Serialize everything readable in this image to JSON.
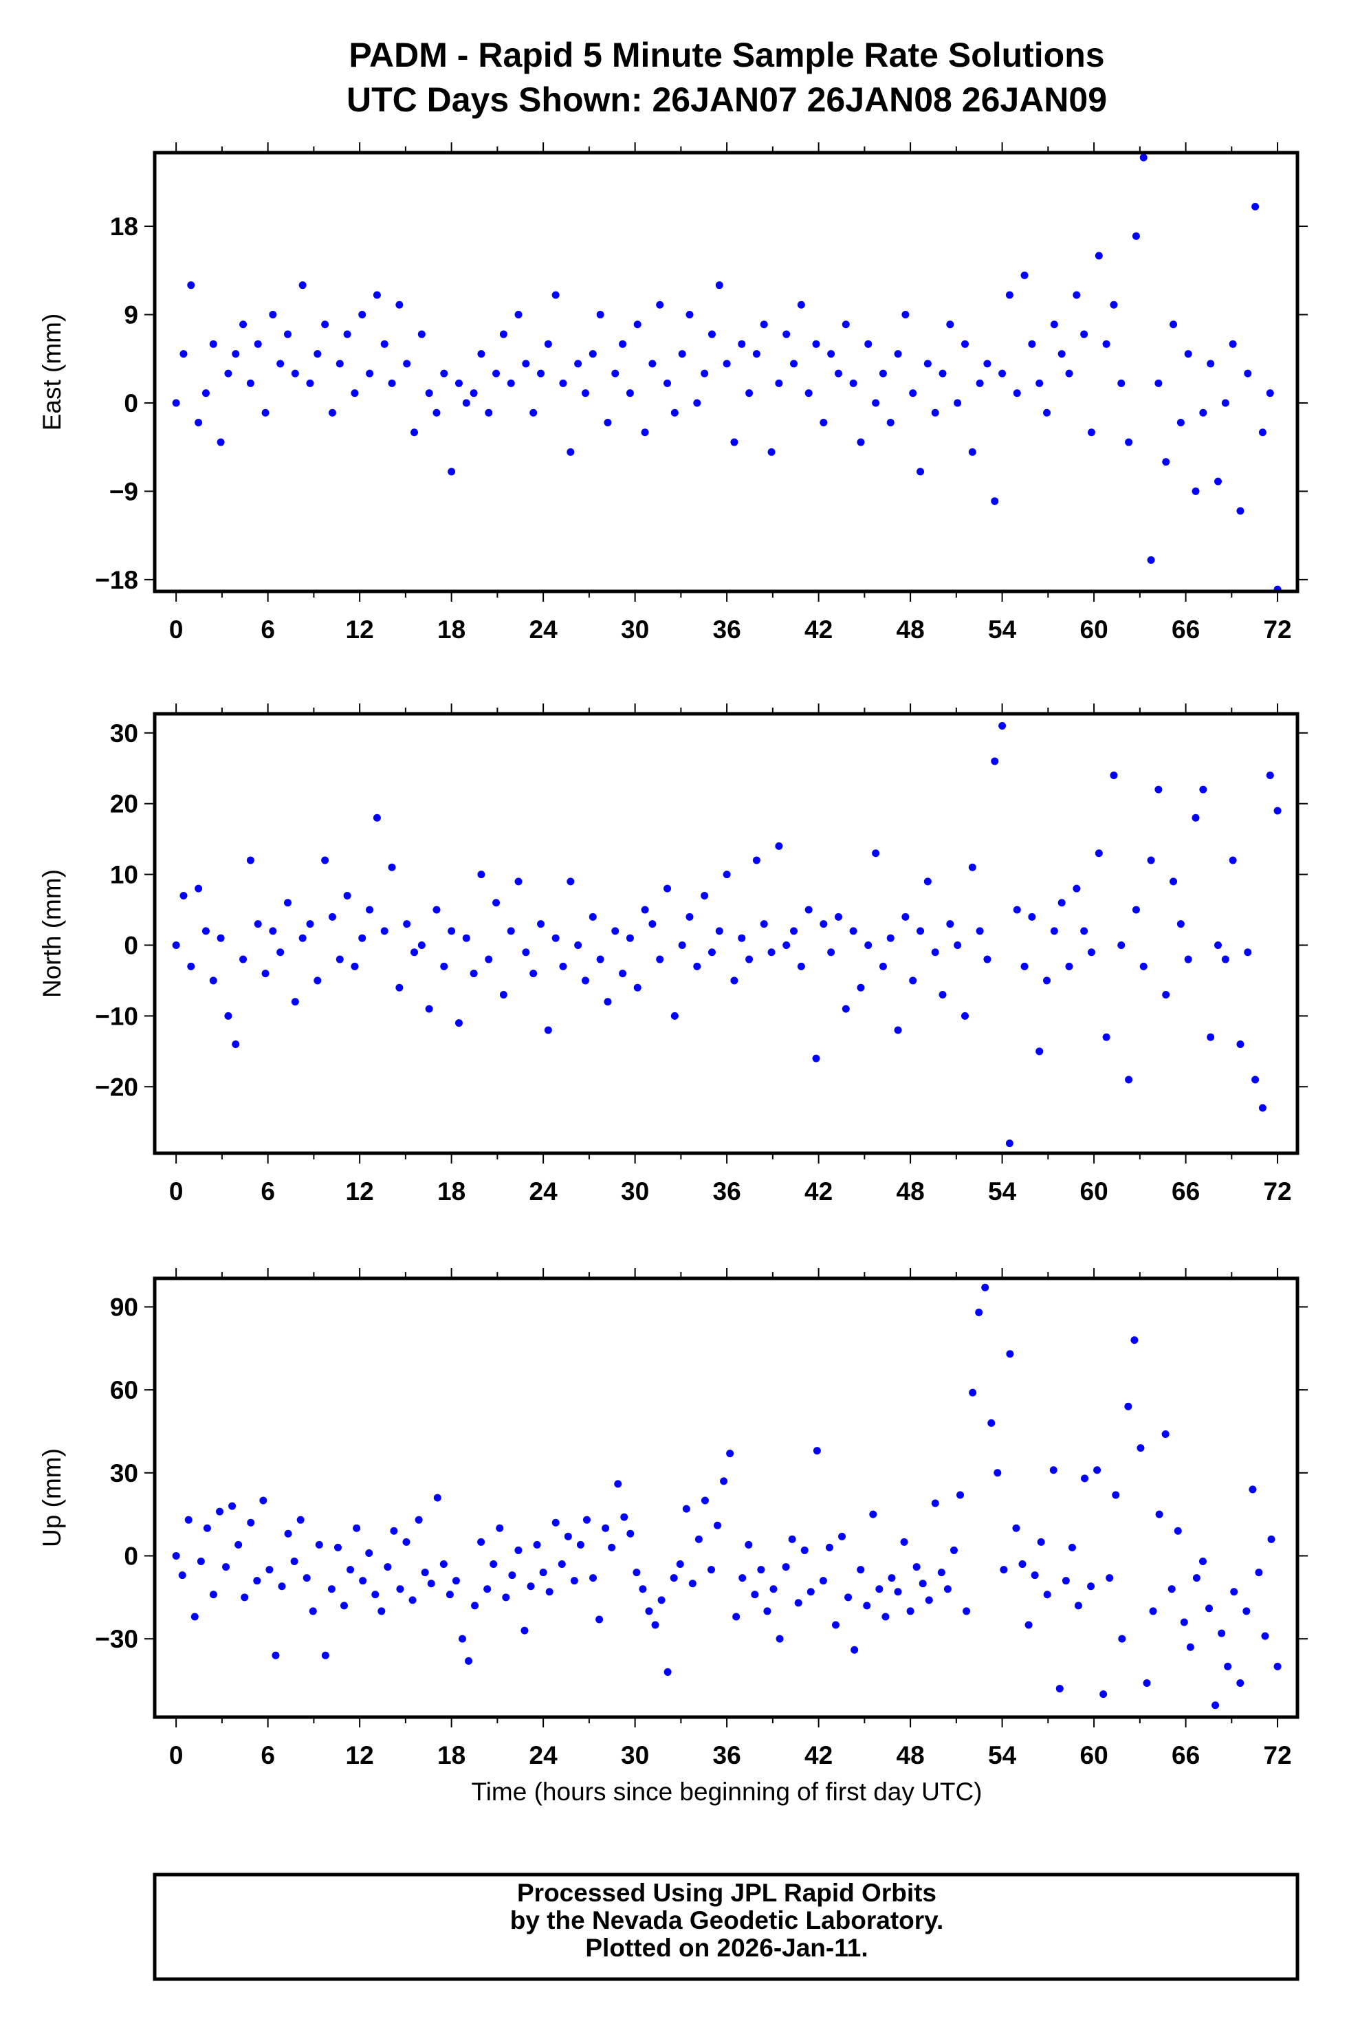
{
  "title_line1": "PADM - Rapid 5 Minute Sample Rate Solutions",
  "title_line2": "UTC Days Shown:  26JAN07 26JAN08 26JAN09",
  "footer": {
    "line1": "Processed Using JPL Rapid Orbits",
    "line2": "by the Nevada Geodetic Laboratory.",
    "line3": "Plotted on 2026-Jan-11."
  },
  "colors": {
    "points": "#0000ff",
    "axes": "#000000"
  },
  "chart_data": [
    {
      "type": "scatter",
      "name": "east",
      "ylabel": "East (mm)",
      "xlabel": "",
      "xlim": [
        -1.4,
        73.3
      ],
      "ylim": [
        -19.2,
        25.5
      ],
      "xticks": [
        "0",
        "6",
        "12",
        "18",
        "24",
        "30",
        "36",
        "42",
        "48",
        "54",
        "60",
        "66",
        "72"
      ],
      "yticks": [
        {
          "v": 18,
          "label": "18"
        },
        {
          "v": 9,
          "label": "9"
        },
        {
          "v": 0,
          "label": "0"
        },
        {
          "v": -9,
          "label": "−9"
        },
        {
          "v": -18,
          "label": "−18"
        }
      ],
      "x_range": [
        0,
        72
      ],
      "values": [
        0,
        5,
        12,
        -2,
        1,
        6,
        -4,
        3,
        5,
        8,
        2,
        6,
        -1,
        9,
        4,
        7,
        3,
        12,
        2,
        5,
        8,
        -1,
        4,
        7,
        1,
        9,
        3,
        11,
        6,
        2,
        10,
        4,
        -3,
        7,
        1,
        -1,
        3,
        -7,
        2,
        0,
        1,
        5,
        -1,
        3,
        7,
        2,
        9,
        4,
        -1,
        3,
        6,
        11,
        2,
        -5,
        4,
        1,
        5,
        9,
        -2,
        3,
        6,
        1,
        8,
        -3,
        4,
        10,
        2,
        -1,
        5,
        9,
        0,
        3,
        7,
        12,
        4,
        -4,
        6,
        1,
        5,
        8,
        -5,
        2,
        7,
        4,
        10,
        1,
        6,
        -2,
        5,
        3,
        8,
        2,
        -4,
        6,
        0,
        3,
        -2,
        5,
        9,
        1,
        -7,
        4,
        -1,
        3,
        8,
        0,
        6,
        -5,
        2,
        4,
        -10,
        3,
        11,
        1,
        13,
        6,
        2,
        -1,
        8,
        5,
        3,
        11,
        7,
        -3,
        15,
        6,
        10,
        2,
        -4,
        17,
        25,
        -16,
        2,
        -6,
        8,
        -2,
        5,
        -9,
        -1,
        4,
        -8,
        0,
        6,
        -11,
        3,
        20,
        -3,
        1,
        -19
      ]
    },
    {
      "type": "scatter",
      "name": "north",
      "ylabel": "North (mm)",
      "xlabel": "",
      "xlim": [
        -1.4,
        73.3
      ],
      "ylim": [
        -29.4,
        32.7
      ],
      "xticks": [
        "0",
        "6",
        "12",
        "18",
        "24",
        "30",
        "36",
        "42",
        "48",
        "54",
        "60",
        "66",
        "72"
      ],
      "yticks": [
        {
          "v": 30,
          "label": "30"
        },
        {
          "v": 20,
          "label": "20"
        },
        {
          "v": 10,
          "label": "10"
        },
        {
          "v": 0,
          "label": "0"
        },
        {
          "v": -10,
          "label": "−10"
        },
        {
          "v": -20,
          "label": "−20"
        }
      ],
      "x_range": [
        0,
        72
      ],
      "values": [
        0,
        7,
        -3,
        8,
        2,
        -5,
        1,
        -10,
        -14,
        -2,
        12,
        3,
        -4,
        2,
        -1,
        6,
        -8,
        1,
        3,
        -5,
        12,
        4,
        -2,
        7,
        -3,
        1,
        5,
        18,
        2,
        11,
        -6,
        3,
        -1,
        0,
        -9,
        5,
        -3,
        2,
        -11,
        1,
        -4,
        10,
        -2,
        6,
        -7,
        2,
        9,
        -1,
        -4,
        3,
        -12,
        1,
        -3,
        9,
        0,
        -5,
        4,
        -2,
        -8,
        2,
        -4,
        1,
        -6,
        5,
        3,
        -2,
        8,
        -10,
        0,
        4,
        -3,
        7,
        -1,
        2,
        10,
        -5,
        1,
        -2,
        12,
        3,
        -1,
        14,
        0,
        2,
        -3,
        5,
        -16,
        3,
        -1,
        4,
        -9,
        2,
        -6,
        0,
        13,
        -3,
        1,
        -12,
        4,
        -5,
        2,
        9,
        -1,
        -7,
        3,
        0,
        -10,
        11,
        2,
        -2,
        26,
        31,
        -28,
        5,
        -3,
        4,
        -15,
        -5,
        2,
        6,
        -3,
        8,
        2,
        -1,
        13,
        -13,
        24,
        0,
        -19,
        5,
        -3,
        12,
        22,
        -7,
        9,
        3,
        -2,
        18,
        22,
        -13,
        0,
        -2,
        12,
        -14,
        -1,
        -19,
        -23,
        24,
        19
      ]
    },
    {
      "type": "scatter",
      "name": "up",
      "ylabel": "Up (mm)",
      "xlabel": "Time (hours since beginning of first day UTC)",
      "xlim": [
        -1.4,
        73.3
      ],
      "ylim": [
        -58.3,
        100.3
      ],
      "xticks": [
        "0",
        "6",
        "12",
        "18",
        "24",
        "30",
        "36",
        "42",
        "48",
        "54",
        "60",
        "66",
        "72"
      ],
      "yticks": [
        {
          "v": 90,
          "label": "90"
        },
        {
          "v": 60,
          "label": "60"
        },
        {
          "v": 30,
          "label": "30"
        },
        {
          "v": 0,
          "label": "0"
        },
        {
          "v": -30,
          "label": "−30"
        }
      ],
      "x_range": [
        0,
        72
      ],
      "values": [
        0,
        -7,
        13,
        -22,
        -2,
        10,
        -14,
        16,
        -4,
        18,
        4,
        -15,
        12,
        -9,
        20,
        -5,
        -36,
        -11,
        8,
        -2,
        13,
        -8,
        -20,
        4,
        -36,
        -12,
        3,
        -18,
        -5,
        10,
        -9,
        1,
        -14,
        -20,
        -4,
        9,
        -12,
        5,
        -16,
        13,
        -6,
        -10,
        21,
        -3,
        -14,
        -9,
        -30,
        -38,
        -18,
        5,
        -12,
        -3,
        10,
        -15,
        -7,
        2,
        -27,
        -11,
        4,
        -6,
        -13,
        12,
        -3,
        7,
        -9,
        4,
        13,
        -8,
        -23,
        10,
        3,
        26,
        14,
        8,
        -6,
        -12,
        -20,
        -25,
        -16,
        -42,
        -8,
        -3,
        17,
        -10,
        6,
        20,
        -5,
        11,
        27,
        37,
        -22,
        -8,
        4,
        -14,
        -5,
        -20,
        -12,
        -30,
        -4,
        6,
        -17,
        2,
        -13,
        38,
        -9,
        3,
        -25,
        7,
        -15,
        -34,
        -5,
        -18,
        15,
        -12,
        -22,
        -8,
        -13,
        5,
        -20,
        -4,
        -10,
        -16,
        19,
        -6,
        -12,
        2,
        22,
        -20,
        59,
        88,
        97,
        48,
        30,
        -5,
        73,
        10,
        -3,
        -25,
        -7,
        5,
        -14,
        31,
        -48,
        -9,
        3,
        -18,
        28,
        -11,
        31,
        -50,
        -8,
        22,
        -30,
        54,
        78,
        39,
        -46,
        -20,
        15,
        44,
        -12,
        9,
        -24,
        -33,
        -8,
        -2,
        -19,
        -54,
        -28,
        -40,
        -13,
        -46,
        -20,
        24,
        -6,
        -29,
        6,
        -40
      ]
    }
  ]
}
